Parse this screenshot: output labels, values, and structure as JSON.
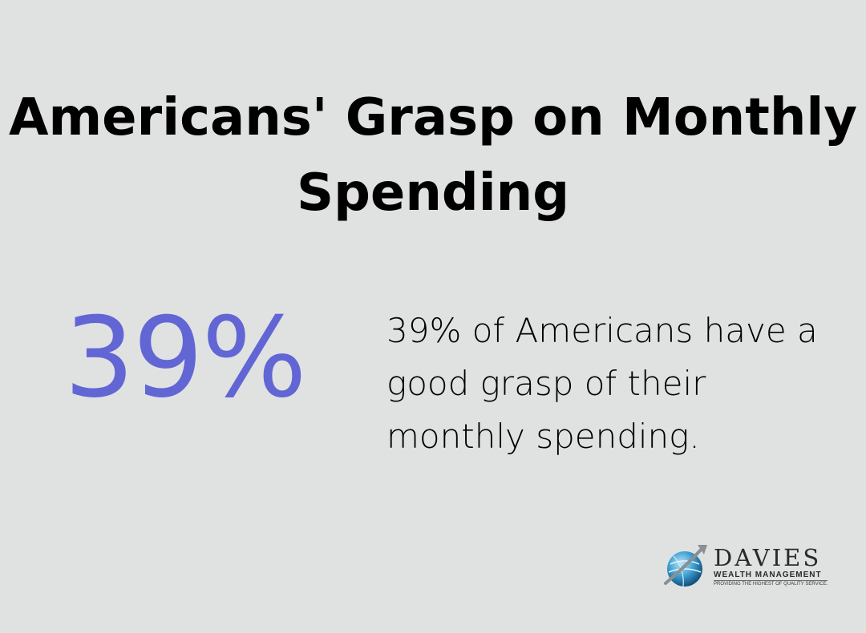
{
  "header": {
    "title": "Americans' Grasp on Monthly Spending"
  },
  "stat": {
    "value": "39%",
    "description": "39% of Americans have a good grasp of their monthly spending."
  },
  "logo": {
    "name": "DAVIES",
    "subtitle": "WEALTH MANAGEMENT",
    "tagline": "PROVIDING THE HIGHEST OF QUALITY SERVICE."
  },
  "colors": {
    "background": "#e0e2e2",
    "accent": "#6266d4",
    "text": "#000000"
  }
}
